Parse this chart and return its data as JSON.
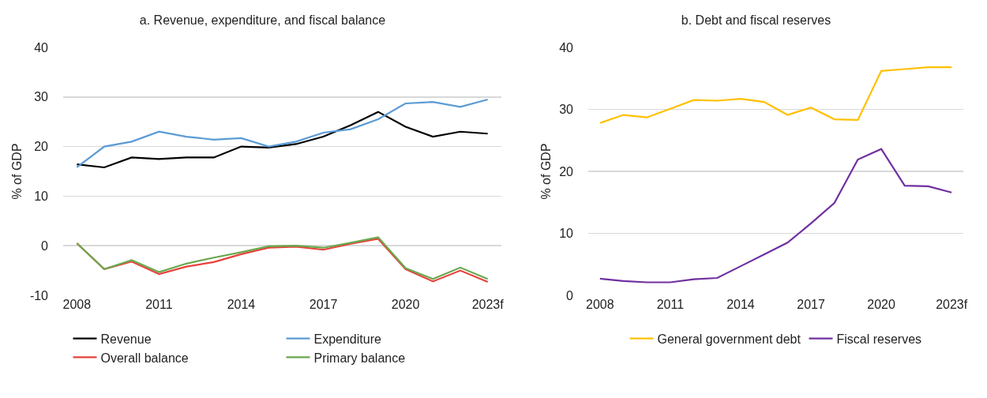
{
  "chart_data": [
    {
      "type": "line",
      "title": "a. Revenue, expenditure, and fiscal balance",
      "ylabel": "% of GDP",
      "categories": [
        "2008",
        null,
        null,
        "2011",
        null,
        null,
        "2014",
        null,
        null,
        "2017",
        null,
        null,
        "2020",
        null,
        null,
        "2023f"
      ],
      "series": [
        {
          "name": "Revenue",
          "color": "#000000",
          "values": [
            16.4,
            15.8,
            17.8,
            17.5,
            17.8,
            17.8,
            20.0,
            19.8,
            20.5,
            22.0,
            24.3,
            27.0,
            24.0,
            22.0,
            23.0,
            22.6
          ]
        },
        {
          "name": "Expenditure",
          "color": "#5b9bd5",
          "values": [
            15.8,
            20.0,
            21.0,
            23.0,
            22.0,
            21.4,
            21.7,
            20.0,
            21.0,
            22.8,
            23.5,
            25.5,
            28.7,
            29.0,
            28.0,
            29.5
          ]
        },
        {
          "name": "Overall balance",
          "color": "#e8413c",
          "values": [
            0.5,
            -4.7,
            -3.2,
            -5.7,
            -4.2,
            -3.3,
            -1.7,
            -0.4,
            -0.2,
            -0.8,
            0.4,
            1.4,
            -4.7,
            -7.2,
            -5.0,
            -7.3
          ]
        },
        {
          "name": "Primary balance",
          "color": "#6aa84f",
          "values": [
            0.5,
            -4.7,
            -2.9,
            -5.3,
            -3.6,
            -2.4,
            -1.3,
            -0.1,
            0.0,
            -0.4,
            0.6,
            1.7,
            -4.5,
            -6.7,
            -4.4,
            -6.7
          ]
        }
      ],
      "ylim": [
        -10,
        40
      ],
      "yticks": [
        -10,
        0,
        10,
        20,
        30,
        40
      ],
      "grid": "y",
      "legend": "bottom"
    },
    {
      "type": "line",
      "title": "b. Debt and fiscal reserves",
      "ylabel": "% of GDP",
      "categories": [
        "2008",
        null,
        null,
        "2011",
        null,
        null,
        "2014",
        null,
        null,
        "2017",
        null,
        null,
        "2020",
        null,
        null,
        "2023f"
      ],
      "series": [
        {
          "name": "General government debt",
          "color": "#ffc000",
          "values": [
            27.8,
            29.1,
            28.7,
            30.1,
            31.5,
            31.4,
            31.7,
            31.2,
            29.1,
            30.3,
            28.4,
            28.3,
            36.2,
            36.5,
            36.8,
            36.8
          ]
        },
        {
          "name": "Fiscal reserves",
          "color": "#7030a0",
          "values": [
            2.7,
            2.3,
            2.1,
            2.1,
            2.6,
            2.8,
            4.7,
            6.6,
            8.5,
            11.6,
            14.9,
            21.9,
            23.6,
            17.7,
            17.6,
            16.6
          ]
        }
      ],
      "ylim": [
        0,
        40
      ],
      "yticks": [
        0,
        10,
        20,
        30,
        40
      ],
      "grid": "y",
      "legend": "bottom"
    }
  ]
}
